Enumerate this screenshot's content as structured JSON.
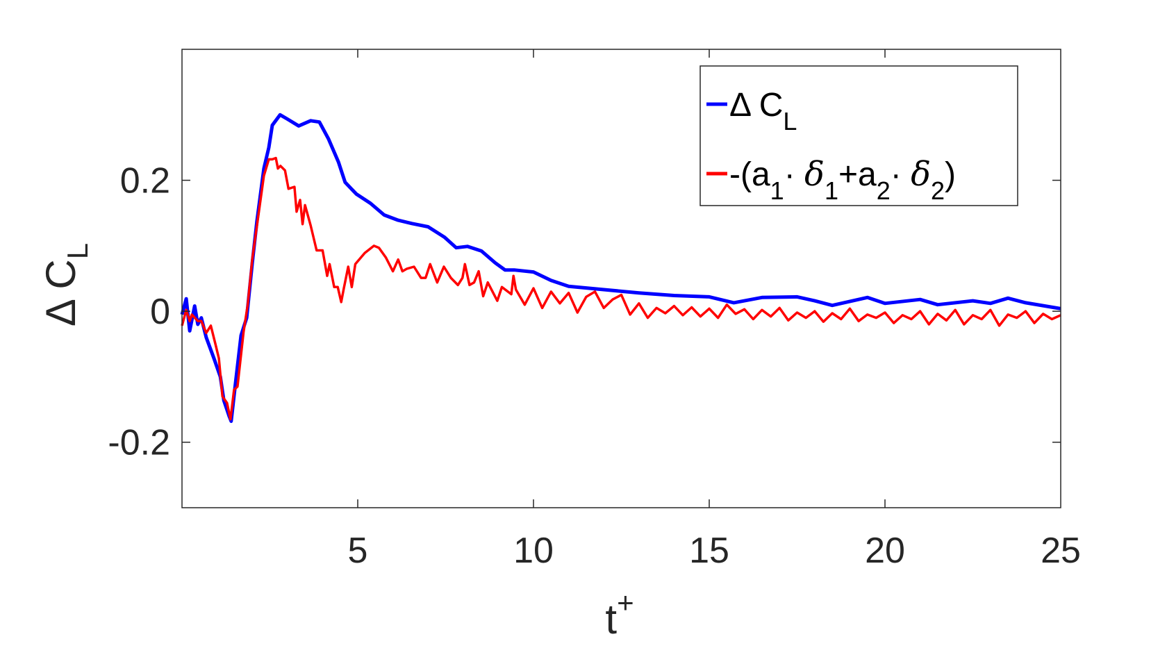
{
  "chart_data": {
    "type": "line",
    "title": "",
    "xlabel": {
      "base": "t",
      "sup": "+"
    },
    "ylabel": {
      "base": "Δ C",
      "sub": "L"
    },
    "xlim": [
      0,
      25
    ],
    "ylim": [
      -0.3,
      0.4
    ],
    "xticks": [
      5,
      10,
      15,
      20,
      25
    ],
    "xtick_labels": [
      "5",
      "10",
      "15",
      "20",
      "25"
    ],
    "yticks": [
      -0.2,
      0,
      0.2
    ],
    "ytick_labels": [
      "-0.2",
      "0",
      "0.2"
    ],
    "grid": false,
    "legend_position": "top-right",
    "series": [
      {
        "name": "Δ C_L",
        "legend": {
          "parts": [
            {
              "t": "Δ C",
              "s": "n"
            },
            {
              "t": "L",
              "s": "sub"
            }
          ]
        },
        "color": "#0000ff",
        "x": [
          0,
          0.12,
          0.22,
          0.36,
          0.45,
          0.55,
          0.69,
          0.91,
          1.09,
          1.19,
          1.34,
          1.4,
          1.5,
          1.68,
          1.84,
          2.0,
          2.13,
          2.33,
          2.47,
          2.57,
          2.79,
          2.98,
          3.32,
          3.66,
          3.91,
          4.17,
          4.45,
          4.64,
          4.96,
          5.36,
          5.75,
          6.15,
          6.54,
          7.0,
          7.47,
          7.8,
          8.12,
          8.52,
          8.91,
          9.19,
          9.45,
          10,
          10.5,
          11,
          12,
          13,
          14,
          15,
          15.7,
          16.5,
          17.5,
          18,
          18.5,
          19.5,
          20,
          21,
          21.5,
          22.5,
          23,
          23.5,
          24,
          25
        ],
        "y": [
          -0.005,
          0.019,
          -0.03,
          0.008,
          -0.02,
          -0.01,
          -0.04,
          -0.072,
          -0.1,
          -0.136,
          -0.16,
          -0.168,
          -0.12,
          -0.037,
          -0.01,
          0.074,
          0.137,
          0.218,
          0.25,
          0.284,
          0.3,
          0.294,
          0.283,
          0.291,
          0.289,
          0.263,
          0.228,
          0.197,
          0.179,
          0.165,
          0.147,
          0.139,
          0.134,
          0.129,
          0.113,
          0.097,
          0.099,
          0.092,
          0.074,
          0.063,
          0.063,
          0.06,
          0.047,
          0.038,
          0.033,
          0.028,
          0.024,
          0.022,
          0.013,
          0.021,
          0.022,
          0.016,
          0.009,
          0.021,
          0.012,
          0.018,
          0.01,
          0.016,
          0.012,
          0.02,
          0.013,
          0.004
        ]
      },
      {
        "name": "-(a_1· δ_1+a_2· δ_2)",
        "legend": {
          "parts": [
            {
              "t": "-(a",
              "s": "n"
            },
            {
              "t": "1",
              "s": "sub"
            },
            {
              "t": "· ",
              "s": "n"
            },
            {
              "t": "δ",
              "s": "greek"
            },
            {
              "t": "1",
              "s": "sub"
            },
            {
              "t": "+a",
              "s": "n"
            },
            {
              "t": "2",
              "s": "sub"
            },
            {
              "t": "· ",
              "s": "n"
            },
            {
              "t": "δ",
              "s": "greek"
            },
            {
              "t": "2",
              "s": "sub"
            },
            {
              "t": ")",
              "s": "n"
            }
          ]
        },
        "color": "#ff0000",
        "x": [
          0,
          0.12,
          0.22,
          0.28,
          0.45,
          0.55,
          0.69,
          0.82,
          0.95,
          1.05,
          1.15,
          1.28,
          1.38,
          1.48,
          1.58,
          1.75,
          1.87,
          2.0,
          2.13,
          2.33,
          2.47,
          2.57,
          2.67,
          2.73,
          2.8,
          2.93,
          3.03,
          3.2,
          3.26,
          3.36,
          3.43,
          3.5,
          3.66,
          3.83,
          4.0,
          4.13,
          4.2,
          4.33,
          4.43,
          4.53,
          4.6,
          4.73,
          4.83,
          4.93,
          5.2,
          5.46,
          5.6,
          5.8,
          6.0,
          6.15,
          6.27,
          6.4,
          6.6,
          6.8,
          6.93,
          7.06,
          7.26,
          7.45,
          7.65,
          7.85,
          7.98,
          8.05,
          8.18,
          8.31,
          8.44,
          8.57,
          8.7,
          8.97,
          9.1,
          9.37,
          9.43,
          9.5,
          9.75,
          10,
          10.25,
          10.5,
          10.75,
          11,
          11.25,
          11.5,
          11.75,
          12,
          12.25,
          12.5,
          12.75,
          13,
          13.25,
          13.5,
          13.75,
          14,
          14.25,
          14.5,
          14.75,
          15,
          15.25,
          15.5,
          15.75,
          16,
          16.25,
          16.5,
          16.75,
          17,
          17.25,
          17.5,
          17.75,
          18,
          18.25,
          18.5,
          18.75,
          19,
          19.25,
          19.5,
          19.75,
          20,
          20.25,
          20.5,
          20.75,
          21,
          21.25,
          21.5,
          21.75,
          22,
          22.25,
          22.5,
          22.75,
          23,
          23.25,
          23.5,
          23.75,
          24,
          24.25,
          24.5,
          24.75,
          25
        ],
        "y": [
          -0.022,
          0.002,
          -0.015,
          -0.005,
          -0.015,
          -0.015,
          -0.033,
          -0.022,
          -0.05,
          -0.072,
          -0.13,
          -0.14,
          -0.165,
          -0.12,
          -0.115,
          -0.032,
          0.01,
          0.08,
          0.13,
          0.207,
          0.232,
          0.232,
          0.234,
          0.218,
          0.222,
          0.215,
          0.187,
          0.19,
          0.152,
          0.17,
          0.133,
          0.162,
          0.131,
          0.093,
          0.093,
          0.054,
          0.072,
          0.037,
          0.037,
          0.014,
          0.034,
          0.068,
          0.037,
          0.072,
          0.089,
          0.1,
          0.097,
          0.082,
          0.061,
          0.079,
          0.061,
          0.065,
          0.068,
          0.051,
          0.051,
          0.072,
          0.044,
          0.068,
          0.051,
          0.04,
          0.051,
          0.072,
          0.04,
          0.044,
          0.061,
          0.023,
          0.044,
          0.016,
          0.037,
          0.026,
          0.054,
          0.033,
          0.01,
          0.035,
          0.005,
          0.03,
          0.012,
          0.028,
          -0.002,
          0.022,
          0.03,
          0.005,
          0.018,
          0.025,
          -0.005,
          0.012,
          -0.01,
          0.005,
          -0.003,
          0.008,
          -0.006,
          0.006,
          -0.008,
          0.004,
          -0.01,
          0.01,
          -0.004,
          0.003,
          -0.012,
          0.002,
          -0.008,
          0.005,
          -0.014,
          -0.002,
          -0.01,
          0.0,
          -0.016,
          -0.003,
          -0.012,
          0.004,
          -0.015,
          -0.005,
          -0.01,
          -0.002,
          -0.018,
          -0.006,
          -0.012,
          0.0,
          -0.02,
          -0.004,
          -0.014,
          0.002,
          -0.02,
          -0.006,
          -0.012,
          0.002,
          -0.022,
          -0.005,
          -0.01,
          0.0,
          -0.018,
          -0.004,
          -0.012,
          -0.006
        ]
      }
    ]
  }
}
